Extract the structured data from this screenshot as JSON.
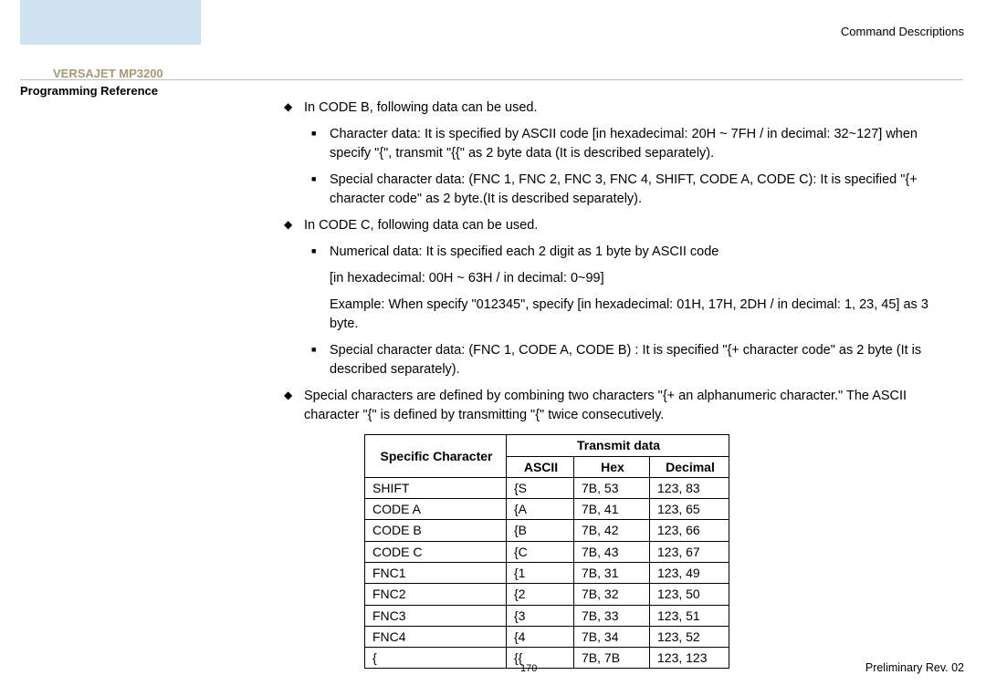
{
  "header": {
    "right": "Command  Descriptions"
  },
  "sidebar": {
    "title": "VERSAJET MP3200",
    "subtitle": "Programming Reference"
  },
  "body": {
    "b1": "In CODE B, following data can be used.",
    "b1a": "Character data: It is specified by ASCII code [in hexadecimal: 20H ~ 7FH / in decimal: 32~127] when specify \"{\", transmit \"{{\" as 2 byte data (It is described separately).",
    "b1b": "Special character data: (FNC 1, FNC 2, FNC 3, FNC 4, SHIFT, CODE A, CODE C): It is specified \"{+ character code\" as 2 byte.(It is described separately).",
    "b2": "In CODE C, following data can be used.",
    "b2a": "Numerical data: It is specified each 2 digit as 1 byte by ASCII code",
    "b2a2": "[in hexadecimal: 00H ~ 63H / in decimal: 0~99]",
    "b2a3": "Example: When specify \"012345\", specify [in hexadecimal: 01H, 17H, 2DH / in decimal: 1, 23, 45] as 3 byte.",
    "b2b": "Special character data: (FNC 1, CODE A, CODE B) : It is specified \"{+ character code\" as 2 byte (It is described separately).",
    "b3": "Special characters are defined by combining two characters \"{+ an alphanumeric character.\" The ASCII character \"{\" is defined by transmitting \"{\" twice consecutively."
  },
  "table": {
    "h_sc": "Specific Character",
    "h_td": "Transmit data",
    "h_a": "ASCII",
    "h_h": "Hex",
    "h_d": "Decimal",
    "rows": [
      {
        "sc": "SHIFT",
        "a": "{S",
        "h": "7B, 53",
        "d": "123, 83"
      },
      {
        "sc": "CODE A",
        "a": "{A",
        "h": "7B, 41",
        "d": "123, 65"
      },
      {
        "sc": "CODE B",
        "a": "{B",
        "h": "7B, 42",
        "d": "123, 66"
      },
      {
        "sc": "CODE C",
        "a": "{C",
        "h": "7B, 43",
        "d": "123, 67"
      },
      {
        "sc": "FNC1",
        "a": "{1",
        "h": "7B, 31",
        "d": "123, 49"
      },
      {
        "sc": "FNC2",
        "a": "{2",
        "h": "7B, 32",
        "d": "123, 50"
      },
      {
        "sc": "FNC3",
        "a": "{3",
        "h": "7B, 33",
        "d": "123, 51"
      },
      {
        "sc": "FNC4",
        "a": "{4",
        "h": "7B, 34",
        "d": "123, 52"
      },
      {
        "sc": "{",
        "a": "{{",
        "h": "7B, 7B",
        "d": "123, 123"
      }
    ]
  },
  "footer": {
    "page": "170",
    "rev": "Preliminary Rev. 02"
  }
}
